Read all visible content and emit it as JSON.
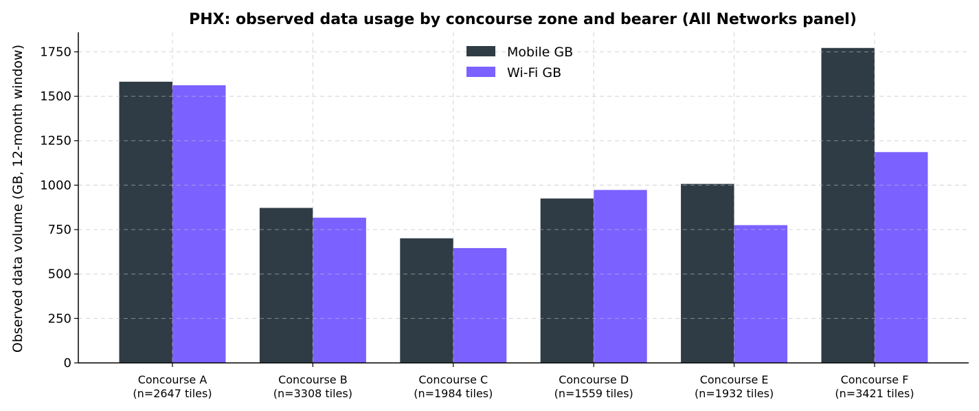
{
  "chart_data": {
    "type": "bar",
    "title": "PHX: observed data usage by concourse zone and bearer (All Networks panel)",
    "xlabel": "",
    "ylabel": "Observed data volume (GB, 12-month window)",
    "categories": [
      [
        "Concourse A",
        "(n=2647 tiles)"
      ],
      [
        "Concourse B",
        "(n=3308 tiles)"
      ],
      [
        "Concourse C",
        "(n=1984 tiles)"
      ],
      [
        "Concourse D",
        "(n=1559 tiles)"
      ],
      [
        "Concourse E",
        "(n=1932 tiles)"
      ],
      [
        "Concourse F",
        "(n=3421 tiles)"
      ]
    ],
    "series": [
      {
        "name": "Mobile GB",
        "color": "#2f3c45",
        "values": [
          1582,
          872,
          701,
          925,
          1007,
          1772
        ]
      },
      {
        "name": "Wi-Fi GB",
        "color": "#7b61ff",
        "values": [
          1562,
          817,
          646,
          973,
          775,
          1186
        ]
      }
    ],
    "ylim": [
      0,
      1860
    ],
    "yticks": [
      0,
      250,
      500,
      750,
      1000,
      1250,
      1500,
      1750
    ],
    "grid": true,
    "legend_position": "top-center"
  }
}
